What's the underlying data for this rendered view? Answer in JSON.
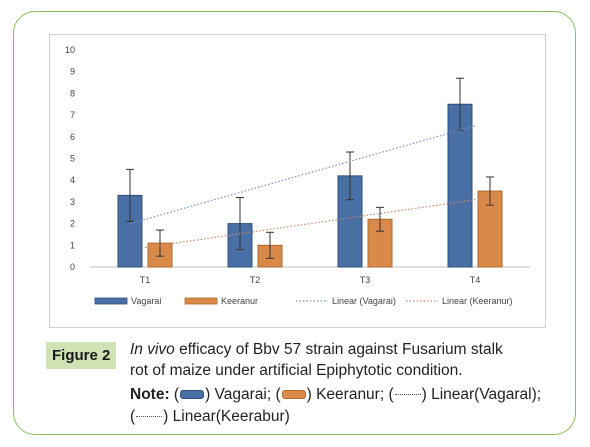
{
  "chart_data": {
    "type": "bar",
    "categories": [
      "T1",
      "T2",
      "T3",
      "T4"
    ],
    "series": [
      {
        "name": "Vagarai",
        "color": "#4a6fa5",
        "values": [
          3.3,
          2.0,
          4.2,
          7.5
        ],
        "error": [
          1.2,
          1.2,
          1.1,
          1.2
        ]
      },
      {
        "name": "Keeranur",
        "color": "#d98a4a",
        "values": [
          1.1,
          1.0,
          2.2,
          3.5
        ],
        "error": [
          0.6,
          0.6,
          0.55,
          0.65
        ]
      }
    ],
    "trendlines": [
      {
        "name": "Linear (Vagarai)",
        "color": "#7a8fbf",
        "start": 2.0,
        "end": 6.5
      },
      {
        "name": "Linear (Keeranur)",
        "color": "#c9896a",
        "start": 0.9,
        "end": 3.2
      }
    ],
    "ylim": [
      0,
      10
    ],
    "yticks": [
      "0",
      "1",
      "2",
      "3",
      "4",
      "5",
      "6",
      "7",
      "8",
      "9",
      "10"
    ],
    "legend": [
      "Vagarai",
      "Keeranur",
      "Linear (Vagarai)",
      "Linear (Keeranur)"
    ],
    "legend_position": "bottom"
  },
  "caption": {
    "label": "Figure 2",
    "line1_italic": "In vivo",
    "line1_rest": " efficacy of Bbv 57 strain against Fusarium stalk",
    "line2": "rot of maize under artificial Epiphytotic condition.",
    "note_label": "Note:",
    "note_items": [
      "Vagarai;",
      "Keeranur;",
      "Linear(Vagaral);",
      "Linear(Keerabur)"
    ]
  }
}
